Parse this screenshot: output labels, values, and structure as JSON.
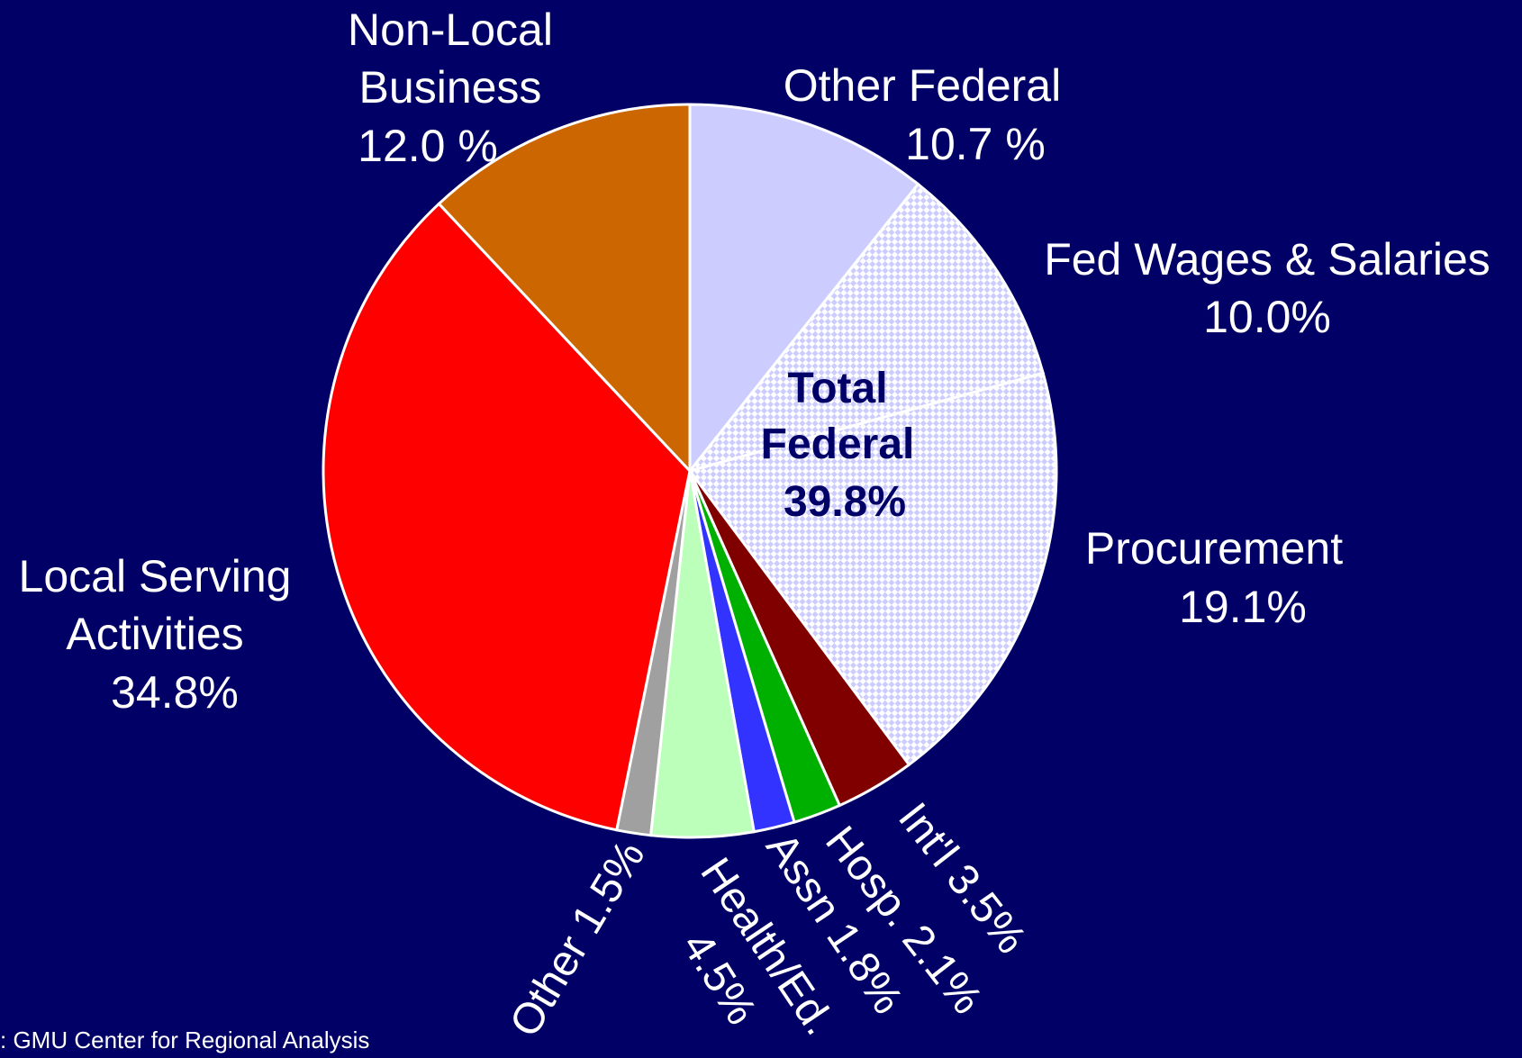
{
  "chart_data": {
    "type": "pie",
    "categories": [
      "Other Federal",
      "Fed Wages & Salaries",
      "Procurement",
      "Int'l",
      "Hosp.",
      "Assn",
      "Health/Ed.",
      "Other",
      "Local Serving Activities",
      "Non-Local Business"
    ],
    "values": [
      10.7,
      10.0,
      19.1,
      3.5,
      2.1,
      1.8,
      4.5,
      1.5,
      34.8,
      12.0
    ],
    "value_labels": [
      "10.7 %",
      "10.0%",
      "19.1%",
      "3.5%",
      "2.1%",
      "1.8%",
      "4.5%",
      "1.5%",
      "34.8%",
      "12.0 %"
    ],
    "colors": [
      "#ccccff",
      "#ccccff",
      "#ccccff",
      "#800000",
      "#00b000",
      "#3333ff",
      "#bbffbb",
      "#a0a0a0",
      "#ff0000",
      "#cc6600"
    ],
    "hatch": [
      null,
      "checker",
      "checker",
      null,
      null,
      null,
      null,
      null,
      null,
      null
    ],
    "annotations": [
      {
        "text": "Total Federal",
        "value_label": "39.8%"
      }
    ],
    "source": ": GMU Center for Regional Analysis"
  }
}
